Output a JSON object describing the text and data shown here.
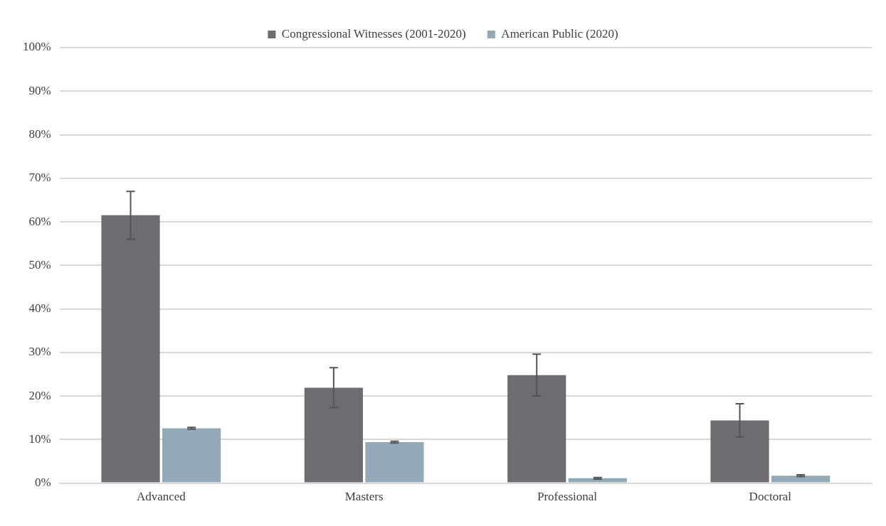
{
  "chart_data": {
    "type": "bar",
    "categories": [
      "Advanced",
      "Masters",
      "Professional",
      "Doctoral"
    ],
    "series": [
      {
        "name": "Congressional Witnesses (2001-2020)",
        "color": "#6d6c70",
        "values": [
          61.5,
          21.9,
          24.8,
          14.4
        ],
        "errors": [
          5.5,
          4.6,
          4.8,
          3.8
        ]
      },
      {
        "name": "American Public (2020)",
        "color": "#93a9b8",
        "values": [
          12.6,
          9.4,
          1.1,
          1.7
        ],
        "errors": [
          0.2,
          0.2,
          0.2,
          0.2
        ]
      }
    ],
    "ylim": [
      0,
      100
    ],
    "yticks": [
      {
        "value": 0,
        "label": "0%"
      },
      {
        "value": 10,
        "label": "10%"
      },
      {
        "value": 20,
        "label": "20%"
      },
      {
        "value": 30,
        "label": "30%"
      },
      {
        "value": 40,
        "label": "40%"
      },
      {
        "value": 50,
        "label": "50%"
      },
      {
        "value": 60,
        "label": "60%"
      },
      {
        "value": 70,
        "label": "70%"
      },
      {
        "value": 80,
        "label": "80%"
      },
      {
        "value": 90,
        "label": "90%"
      },
      {
        "value": 100,
        "label": "100%"
      }
    ],
    "grid": "y",
    "legend": "top"
  }
}
